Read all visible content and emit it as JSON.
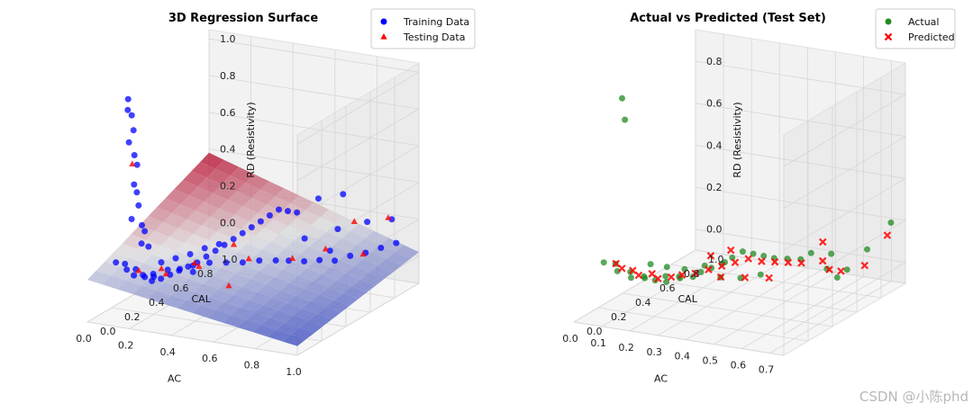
{
  "watermark": "CSDN @小陈phd",
  "chart_data": [
    {
      "type": "scatter",
      "subtype": "3d-scatter-with-regression-surface",
      "title": "3D Regression Surface",
      "xlabel": "AC",
      "ylabel": "CAL",
      "zlabel": "RD (Resistivity)",
      "xlim": [
        0.0,
        1.0
      ],
      "ylim": [
        0.0,
        1.0
      ],
      "zlim": [
        -0.15,
        1.05
      ],
      "xticks": [
        "0.0",
        "0.2",
        "0.4",
        "0.6",
        "0.8",
        "1.0"
      ],
      "yticks": [
        "0.0",
        "0.2",
        "0.4",
        "0.6",
        "0.8",
        "1.0"
      ],
      "zticks": [
        "0.0",
        "0.2",
        "0.4",
        "0.6",
        "0.8",
        "1.0"
      ],
      "grid": true,
      "legend_position": "top-right",
      "surface": {
        "colormap": "coolwarm",
        "z_at_corners": {
          "ac0_cal0": 0.08,
          "ac1_cal0": -0.1,
          "ac0_cal1": 0.38,
          "ac1_cal1": 0.02
        }
      },
      "series": [
        {
          "name": "Training Data",
          "marker": "circle",
          "color": "#0000ff",
          "points": [
            [
              0.02,
              0.3,
              0.95
            ],
            [
              0.03,
              0.28,
              0.9
            ],
            [
              0.02,
              0.33,
              0.85
            ],
            [
              0.04,
              0.31,
              0.78
            ],
            [
              0.03,
              0.29,
              0.72
            ],
            [
              0.05,
              0.3,
              0.65
            ],
            [
              0.04,
              0.34,
              0.58
            ],
            [
              0.06,
              0.28,
              0.5
            ],
            [
              0.05,
              0.32,
              0.44
            ],
            [
              0.07,
              0.3,
              0.38
            ],
            [
              0.06,
              0.26,
              0.32
            ],
            [
              0.08,
              0.31,
              0.27
            ],
            [
              0.07,
              0.35,
              0.22
            ],
            [
              0.09,
              0.29,
              0.18
            ],
            [
              0.1,
              0.33,
              0.15
            ],
            [
              0.02,
              0.2,
              0.1
            ],
            [
              0.04,
              0.24,
              0.08
            ],
            [
              0.06,
              0.22,
              0.06
            ],
            [
              0.08,
              0.26,
              0.05
            ],
            [
              0.1,
              0.21,
              0.04
            ],
            [
              0.12,
              0.25,
              0.03
            ],
            [
              0.14,
              0.23,
              0.03
            ],
            [
              0.16,
              0.27,
              0.02
            ],
            [
              0.18,
              0.22,
              0.02
            ],
            [
              0.2,
              0.26,
              0.02
            ],
            [
              0.22,
              0.3,
              0.03
            ],
            [
              0.24,
              0.34,
              0.04
            ],
            [
              0.26,
              0.38,
              0.05
            ],
            [
              0.28,
              0.42,
              0.06
            ],
            [
              0.3,
              0.46,
              0.08
            ],
            [
              0.32,
              0.5,
              0.1
            ],
            [
              0.34,
              0.54,
              0.12
            ],
            [
              0.36,
              0.58,
              0.14
            ],
            [
              0.38,
              0.62,
              0.16
            ],
            [
              0.4,
              0.66,
              0.18
            ],
            [
              0.42,
              0.7,
              0.2
            ],
            [
              0.44,
              0.74,
              0.22
            ],
            [
              0.46,
              0.78,
              0.24
            ],
            [
              0.48,
              0.82,
              0.22
            ],
            [
              0.5,
              0.86,
              0.2
            ],
            [
              0.35,
              0.4,
              0.08
            ],
            [
              0.4,
              0.45,
              0.07
            ],
            [
              0.45,
              0.5,
              0.06
            ],
            [
              0.5,
              0.55,
              0.06
            ],
            [
              0.55,
              0.6,
              0.05
            ],
            [
              0.6,
              0.62,
              0.05
            ],
            [
              0.65,
              0.66,
              0.04
            ],
            [
              0.7,
              0.7,
              0.04
            ],
            [
              0.75,
              0.74,
              0.03
            ],
            [
              0.8,
              0.78,
              0.05
            ],
            [
              0.85,
              0.82,
              0.06
            ],
            [
              0.9,
              0.86,
              0.08
            ],
            [
              0.95,
              0.9,
              0.1
            ],
            [
              0.6,
              0.75,
              0.12
            ],
            [
              0.7,
              0.85,
              0.15
            ],
            [
              0.8,
              0.92,
              0.18
            ],
            [
              0.9,
              0.95,
              0.2
            ],
            [
              0.55,
              0.95,
              0.25
            ],
            [
              0.65,
              0.98,
              0.28
            ],
            [
              0.75,
              0.7,
              0.1
            ],
            [
              0.12,
              0.4,
              0.04
            ],
            [
              0.16,
              0.45,
              0.05
            ],
            [
              0.2,
              0.5,
              0.06
            ],
            [
              0.24,
              0.55,
              0.08
            ],
            [
              0.28,
              0.6,
              0.09
            ],
            [
              0.14,
              0.3,
              0.02
            ],
            [
              0.18,
              0.35,
              0.03
            ],
            [
              0.22,
              0.38,
              0.03
            ],
            [
              0.26,
              0.42,
              0.04
            ],
            [
              0.3,
              0.35,
              0.04
            ]
          ]
        },
        {
          "name": "Testing Data",
          "marker": "triangle",
          "color": "#ff0000",
          "points": [
            [
              0.04,
              0.3,
              0.6
            ],
            [
              0.1,
              0.25,
              0.05
            ],
            [
              0.2,
              0.3,
              0.03
            ],
            [
              0.3,
              0.4,
              0.05
            ],
            [
              0.45,
              0.55,
              0.06
            ],
            [
              0.6,
              0.65,
              0.05
            ],
            [
              0.75,
              0.9,
              0.18
            ],
            [
              0.85,
              0.8,
              0.06
            ],
            [
              0.5,
              0.3,
              0.02
            ],
            [
              0.35,
              0.6,
              0.1
            ],
            [
              0.15,
              0.35,
              0.03
            ],
            [
              0.25,
              0.45,
              0.04
            ],
            [
              0.7,
              0.75,
              0.08
            ],
            [
              0.9,
              0.92,
              0.22
            ]
          ]
        }
      ]
    },
    {
      "type": "scatter",
      "subtype": "3d-scatter",
      "title": "Actual vs Predicted (Test Set)",
      "xlabel": "AC",
      "ylabel": "CAL",
      "zlabel": "RD (Resistivity)",
      "xlim": [
        0.0,
        0.75
      ],
      "ylim": [
        0.0,
        1.0
      ],
      "zlim": [
        -0.1,
        0.95
      ],
      "xticks": [
        "0.0",
        "0.1",
        "0.2",
        "0.3",
        "0.4",
        "0.5",
        "0.6",
        "0.7"
      ],
      "yticks": [
        "0.0",
        "0.2",
        "0.4",
        "0.6",
        "0.8",
        "1.0"
      ],
      "zticks": [
        "0.0",
        "0.2",
        "0.4",
        "0.6",
        "0.8"
      ],
      "grid": true,
      "legend_position": "top-right",
      "series": [
        {
          "name": "Actual",
          "marker": "circle",
          "color": "#228b22",
          "points": [
            [
              0.02,
              0.35,
              0.85
            ],
            [
              0.03,
              0.35,
              0.75
            ],
            [
              0.02,
              0.2,
              0.12
            ],
            [
              0.04,
              0.25,
              0.1
            ],
            [
              0.06,
              0.22,
              0.08
            ],
            [
              0.08,
              0.28,
              0.06
            ],
            [
              0.1,
              0.24,
              0.05
            ],
            [
              0.12,
              0.3,
              0.04
            ],
            [
              0.14,
              0.26,
              0.05
            ],
            [
              0.16,
              0.3,
              0.03
            ],
            [
              0.18,
              0.34,
              0.04
            ],
            [
              0.2,
              0.3,
              0.03
            ],
            [
              0.22,
              0.36,
              0.04
            ],
            [
              0.24,
              0.32,
              0.05
            ],
            [
              0.26,
              0.38,
              0.04
            ],
            [
              0.28,
              0.4,
              0.06
            ],
            [
              0.3,
              0.44,
              0.07
            ],
            [
              0.32,
              0.48,
              0.08
            ],
            [
              0.34,
              0.52,
              0.1
            ],
            [
              0.36,
              0.56,
              0.12
            ],
            [
              0.38,
              0.6,
              0.1
            ],
            [
              0.4,
              0.64,
              0.08
            ],
            [
              0.42,
              0.68,
              0.06
            ],
            [
              0.45,
              0.72,
              0.05
            ],
            [
              0.48,
              0.76,
              0.04
            ],
            [
              0.5,
              0.8,
              0.06
            ],
            [
              0.55,
              0.85,
              0.05
            ],
            [
              0.6,
              0.7,
              0.04
            ],
            [
              0.65,
              0.75,
              0.03
            ],
            [
              0.7,
              0.8,
              0.12
            ],
            [
              0.72,
              0.95,
              0.2
            ],
            [
              0.68,
              0.6,
              0.05
            ],
            [
              0.1,
              0.4,
              0.06
            ],
            [
              0.15,
              0.42,
              0.05
            ],
            [
              0.2,
              0.45,
              0.04
            ],
            [
              0.25,
              0.5,
              0.05
            ],
            [
              0.3,
              0.55,
              0.06
            ],
            [
              0.35,
              0.4,
              0.05
            ],
            [
              0.4,
              0.45,
              0.04
            ],
            [
              0.45,
              0.5,
              0.05
            ]
          ]
        },
        {
          "name": "Predicted",
          "marker": "x",
          "color": "#ff0000",
          "points": [
            [
              0.02,
              0.3,
              0.08
            ],
            [
              0.05,
              0.28,
              0.07
            ],
            [
              0.08,
              0.3,
              0.06
            ],
            [
              0.11,
              0.28,
              0.05
            ],
            [
              0.14,
              0.32,
              0.05
            ],
            [
              0.17,
              0.3,
              0.04
            ],
            [
              0.2,
              0.34,
              0.04
            ],
            [
              0.23,
              0.36,
              0.05
            ],
            [
              0.26,
              0.4,
              0.05
            ],
            [
              0.29,
              0.44,
              0.06
            ],
            [
              0.32,
              0.48,
              0.07
            ],
            [
              0.35,
              0.52,
              0.08
            ],
            [
              0.38,
              0.56,
              0.09
            ],
            [
              0.41,
              0.6,
              0.07
            ],
            [
              0.44,
              0.64,
              0.06
            ],
            [
              0.47,
              0.68,
              0.05
            ],
            [
              0.5,
              0.72,
              0.04
            ],
            [
              0.55,
              0.78,
              0.04
            ],
            [
              0.6,
              0.72,
              0.03
            ],
            [
              0.65,
              0.7,
              0.04
            ],
            [
              0.7,
              0.78,
              0.05
            ],
            [
              0.72,
              0.92,
              0.15
            ],
            [
              0.36,
              0.38,
              0.06
            ],
            [
              0.42,
              0.44,
              0.05
            ],
            [
              0.48,
              0.5,
              0.04
            ],
            [
              0.3,
              0.6,
              0.1
            ],
            [
              0.25,
              0.55,
              0.08
            ],
            [
              0.52,
              0.85,
              0.1
            ]
          ]
        }
      ]
    }
  ]
}
